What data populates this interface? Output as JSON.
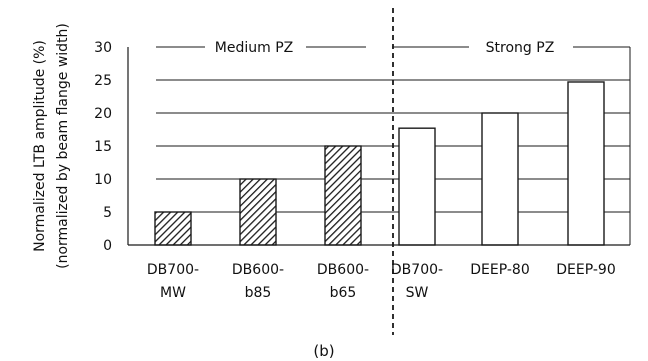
{
  "chart_data": {
    "type": "bar",
    "caption": "(b)",
    "ylabel_lines": [
      "Normalized LTB amplitude (%)",
      "(normalized by beam flange width)"
    ],
    "ylim": [
      0,
      30
    ],
    "yticks": [
      0,
      5,
      10,
      15,
      20,
      25,
      30
    ],
    "grid": true,
    "groups": [
      {
        "label": "Medium PZ",
        "fill": "hatched",
        "bars": [
          {
            "label_lines": [
              "DB700-",
              "MW"
            ],
            "value": 5
          },
          {
            "label_lines": [
              "DB600-",
              "b85"
            ],
            "value": 10
          },
          {
            "label_lines": [
              "DB600-",
              "b65"
            ],
            "value": 15
          }
        ]
      },
      {
        "label": "Strong PZ",
        "fill": "white",
        "bars": [
          {
            "label_lines": [
              "DB700-",
              "SW"
            ],
            "value": 17.7
          },
          {
            "label_lines": [
              "DEEP-80"
            ],
            "value": 20
          },
          {
            "label_lines": [
              "DEEP-90"
            ],
            "value": 24.7
          }
        ]
      }
    ],
    "colors": {
      "bar_stroke": "#1a1a1a",
      "hatch": "#1a1a1a",
      "grid": "#1a1a1a",
      "divider": "#1a1a1a"
    }
  }
}
